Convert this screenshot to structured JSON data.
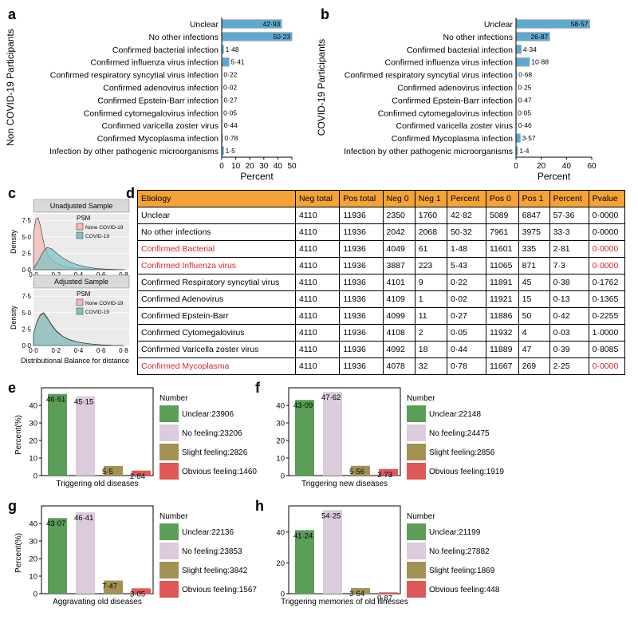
{
  "panels": {
    "a": "a",
    "b": "b",
    "c": "c",
    "d": "d",
    "e": "e",
    "f": "f",
    "g": "g",
    "h": "h"
  },
  "chart_data": [
    {
      "id": "a",
      "type": "bar",
      "orientation": "horizontal",
      "ylabel": "Non COVID-19 Participants",
      "xlabel": "Percent",
      "xlim": [
        0,
        50
      ],
      "xticks": [
        0,
        10,
        20,
        30,
        40,
        50
      ],
      "categories": [
        "Unclear",
        "No other infections",
        "Confirmed bacterial infection",
        "Confirmed influenza virus infection",
        "Confirmed respiratory syncytial virus infection",
        "Confirmed adenovirus infection",
        "Confirmed Epstein-Barr infection",
        "Confirmed cytomegalovirus infection",
        "Confirmed varicella zoster virus",
        "Confirmed Mycoplasma infection",
        "Infection by other pathogenic microorganisms"
      ],
      "values": [
        42.93,
        50.23,
        1.48,
        5.41,
        0.22,
        0.02,
        0.27,
        0.05,
        0.44,
        0.78,
        1.5
      ],
      "value_labels": [
        "42·93",
        "50·23",
        "1·48",
        "5·41",
        "0·22",
        "0·02",
        "0·27",
        "0·05",
        "0·44",
        "0·78",
        "1·5"
      ]
    },
    {
      "id": "b",
      "type": "bar",
      "orientation": "horizontal",
      "ylabel": "COVID-19 Participants",
      "xlabel": "Percent",
      "xlim": [
        0,
        60
      ],
      "xticks": [
        0,
        20,
        40,
        60
      ],
      "categories": [
        "Unclear",
        "No other infections",
        "Confirmed bacterial infection",
        "Confirmed influenza virus infection",
        "Confirmed respiratory syncytial virus infection",
        "Confirmed adenovirus infection",
        "Confirmed Epstein-Barr infection",
        "Confirmed cytomegalovirus infection",
        "Confirmed varicella zoster virus",
        "Confirmed Mycoplasma infection",
        "Infection by other pathogenic microorganisms"
      ],
      "values": [
        58.57,
        26.87,
        4.34,
        10.88,
        0.68,
        0.25,
        0.47,
        0.05,
        0.46,
        3.57,
        1.4
      ],
      "value_labels": [
        "58·57",
        "26·87",
        "4·34",
        "10·88",
        "0·68",
        "0·25",
        "0·47",
        "0·05",
        "0·46",
        "3·57",
        "1·4"
      ]
    },
    {
      "id": "c",
      "type": "area",
      "title": "Unadjusted Sample",
      "ylabel": "Density",
      "legend_title": "PSM",
      "legend": [
        "None COVID-19",
        "COVID-19"
      ],
      "yticks": [
        "0·0",
        "2·5",
        "5·0",
        "7·5"
      ],
      "ylim": [
        0,
        8.5
      ],
      "xticks": [
        "0·0",
        "0·2",
        "0·4",
        "0·6",
        "0·8"
      ],
      "xlim": [
        0,
        0.85
      ],
      "series": [
        {
          "name": "None COVID-19",
          "x": [
            0.0,
            0.02,
            0.04,
            0.06,
            0.08,
            0.1,
            0.14,
            0.2,
            0.26,
            0.32,
            0.4,
            0.5,
            0.6,
            0.7,
            0.8
          ],
          "y": [
            5.6,
            7.6,
            7.9,
            6.8,
            5.0,
            3.4,
            1.8,
            1.0,
            0.6,
            0.35,
            0.2,
            0.1,
            0.05,
            0.02,
            0.0
          ]
        },
        {
          "name": "COVID-19",
          "x": [
            0.0,
            0.04,
            0.08,
            0.12,
            0.16,
            0.2,
            0.26,
            0.32,
            0.38,
            0.46,
            0.55,
            0.65,
            0.75,
            0.82
          ],
          "y": [
            0.2,
            1.2,
            2.6,
            3.4,
            3.2,
            2.6,
            1.8,
            1.2,
            0.8,
            0.45,
            0.2,
            0.08,
            0.02,
            0.0
          ]
        }
      ]
    },
    {
      "id": "c2",
      "type": "area",
      "title": "Adjusted Sample",
      "ylabel": "Density",
      "legend_title": "PSM",
      "xlabel": "Distributional Balance for distance",
      "legend": [
        "None COVID-19",
        "COVID-19"
      ],
      "yticks": [
        "0·0",
        "2·5",
        "5·0",
        "7·5"
      ],
      "ylim": [
        0,
        8.5
      ],
      "xticks": [
        "0·0",
        "0·2",
        "0·4",
        "0·6",
        "0·8"
      ],
      "xlim": [
        0,
        0.85
      ],
      "series": [
        {
          "name": "None COVID-19",
          "x": [
            0.0,
            0.03,
            0.06,
            0.09,
            0.12,
            0.16,
            0.2,
            0.26,
            0.32,
            0.4,
            0.5,
            0.6,
            0.7,
            0.8
          ],
          "y": [
            1.8,
            3.6,
            4.7,
            5.0,
            4.3,
            3.2,
            2.3,
            1.4,
            0.9,
            0.5,
            0.25,
            0.1,
            0.03,
            0.0
          ]
        },
        {
          "name": "COVID-19",
          "x": [
            0.0,
            0.03,
            0.06,
            0.09,
            0.12,
            0.16,
            0.2,
            0.26,
            0.32,
            0.4,
            0.5,
            0.6,
            0.7,
            0.8
          ],
          "y": [
            1.7,
            3.5,
            4.6,
            4.9,
            4.2,
            3.1,
            2.2,
            1.35,
            0.85,
            0.5,
            0.25,
            0.1,
            0.03,
            0.0
          ]
        }
      ]
    },
    {
      "id": "e",
      "type": "bar",
      "xlabel": "Triggering old diseases",
      "ylabel": "Percent(%)",
      "ylim": [
        0,
        50
      ],
      "yticks": [
        0,
        10,
        20,
        30,
        40
      ],
      "categories": [
        "Unclear",
        "No feeling",
        "Slight feeling",
        "Obvious feeling"
      ],
      "values": [
        46.51,
        45.15,
        5.5,
        2.84
      ],
      "value_labels": [
        "46·51",
        "45·15",
        "5·5",
        "2·84"
      ],
      "legend_title": "Number",
      "legend": [
        "Unclear:23906",
        "No feeling:23206",
        "Slight feeling:2826",
        "Obvious feeling:1460"
      ]
    },
    {
      "id": "f",
      "type": "bar",
      "xlabel": "Triggering new diseases",
      "ylabel": "",
      "ylim": [
        0,
        50
      ],
      "yticks": [
        0,
        10,
        20,
        30,
        40
      ],
      "categories": [
        "Unclear",
        "No feeling",
        "Slight feeling",
        "Obvious feeling"
      ],
      "values": [
        43.09,
        47.62,
        5.56,
        3.73
      ],
      "value_labels": [
        "43·09",
        "47·62",
        "5·56",
        "3·73"
      ],
      "legend_title": "Number",
      "legend": [
        "Unclear:22148",
        "No feeling:24475",
        "Slight feeling:2856",
        "Obvious feeling:1919"
      ]
    },
    {
      "id": "g",
      "type": "bar",
      "xlabel": "Aggravating old diseases",
      "ylabel": "Percent(%)",
      "ylim": [
        0,
        50
      ],
      "yticks": [
        0,
        10,
        20,
        30,
        40
      ],
      "categories": [
        "Unclear",
        "No feeling",
        "Slight feeling",
        "Obvious feeling"
      ],
      "values": [
        43.07,
        46.41,
        7.47,
        3.05
      ],
      "value_labels": [
        "43·07",
        "46·41",
        "7·47",
        "3·05"
      ],
      "legend_title": "Number",
      "legend": [
        "Unclear:22136",
        "No feeling:23853",
        "Slight feeling:3842",
        "Obvious feeling:1567"
      ]
    },
    {
      "id": "h",
      "type": "bar",
      "xlabel": "Triggering memories of old illnesses",
      "ylabel": "",
      "ylim": [
        0,
        57
      ],
      "yticks": [
        0,
        20,
        40
      ],
      "categories": [
        "Unclear",
        "No feeling",
        "Slight feeling",
        "Obvious feeling"
      ],
      "values": [
        41.24,
        54.25,
        3.64,
        0.87
      ],
      "value_labels": [
        "41·24",
        "54·25",
        "3·64",
        "0·87"
      ],
      "legend_title": "Number",
      "legend": [
        "Unclear:21199",
        "No feeling:27882",
        "Slight feeling:1869",
        "Obvious feeling:448"
      ]
    }
  ],
  "table": {
    "headers": [
      "Etiology",
      "Neg total",
      "Pos total",
      "Neg 0",
      "Neg 1",
      "Percent",
      "Pos 0",
      "Pos 1",
      "Percent",
      "Pvalue"
    ],
    "rows": [
      {
        "highlight": false,
        "cells": [
          "Unclear",
          "4110",
          "11936",
          "2350",
          "1760",
          "42·82",
          "5089",
          "6847",
          "57·36",
          "0·0000"
        ]
      },
      {
        "highlight": false,
        "cells": [
          "No other infections",
          "4110",
          "11936",
          "2042",
          "2068",
          "50·32",
          "7961",
          "3975",
          "33·3",
          "0·0000"
        ]
      },
      {
        "highlight": true,
        "cells": [
          "Confirmed Bacterial",
          "4110",
          "11936",
          "4049",
          "61",
          "1·48",
          "11601",
          "335",
          "2·81",
          "0·0000"
        ]
      },
      {
        "highlight": true,
        "cells": [
          "Confirmed Influenza virus",
          "4110",
          "11936",
          "3887",
          "223",
          "5·43",
          "11065",
          "871",
          "7·3",
          "0·0000"
        ]
      },
      {
        "highlight": false,
        "cells": [
          "Confirmed Respiratory syncytial virus",
          "4110",
          "11936",
          "4101",
          "9",
          "0·22",
          "11891",
          "45",
          "0·38",
          "0·1762"
        ]
      },
      {
        "highlight": false,
        "cells": [
          "Confirmed Adenovirus",
          "4110",
          "11936",
          "4109",
          "1",
          "0·02",
          "11921",
          "15",
          "0·13",
          "0·1365"
        ]
      },
      {
        "highlight": false,
        "cells": [
          "Confirmed Epstein-Barr",
          "4110",
          "11936",
          "4099",
          "11",
          "0·27",
          "11886",
          "50",
          "0·42",
          "0·2255"
        ]
      },
      {
        "highlight": false,
        "cells": [
          "Confirmed Cytomegalovirus",
          "4110",
          "11936",
          "4108",
          "2",
          "0·05",
          "11932",
          "4",
          "0·03",
          "1·0000"
        ]
      },
      {
        "highlight": false,
        "cells": [
          "Confirmed Varicella zoster virus",
          "4110",
          "11936",
          "4092",
          "18",
          "0·44",
          "11889",
          "47",
          "0·39",
          "0·8085"
        ]
      },
      {
        "highlight": true,
        "cells": [
          "Confirmed Mycoplasma",
          "4110",
          "11936",
          "4078",
          "32",
          "0·78",
          "11667",
          "269",
          "2·25",
          "0·0000"
        ]
      }
    ]
  },
  "colors": {
    "hbar": "#5fa9cf",
    "hbar_bg": "#bebebe",
    "unclear": "#5a9e57",
    "no_feeling": "#dccbdc",
    "slight": "#a39253",
    "obvious": "#e05757",
    "none_covid": "#f4b7b5",
    "covid": "#7dc5c5",
    "header": "#f5a336",
    "highlight_text": "#d62728"
  }
}
